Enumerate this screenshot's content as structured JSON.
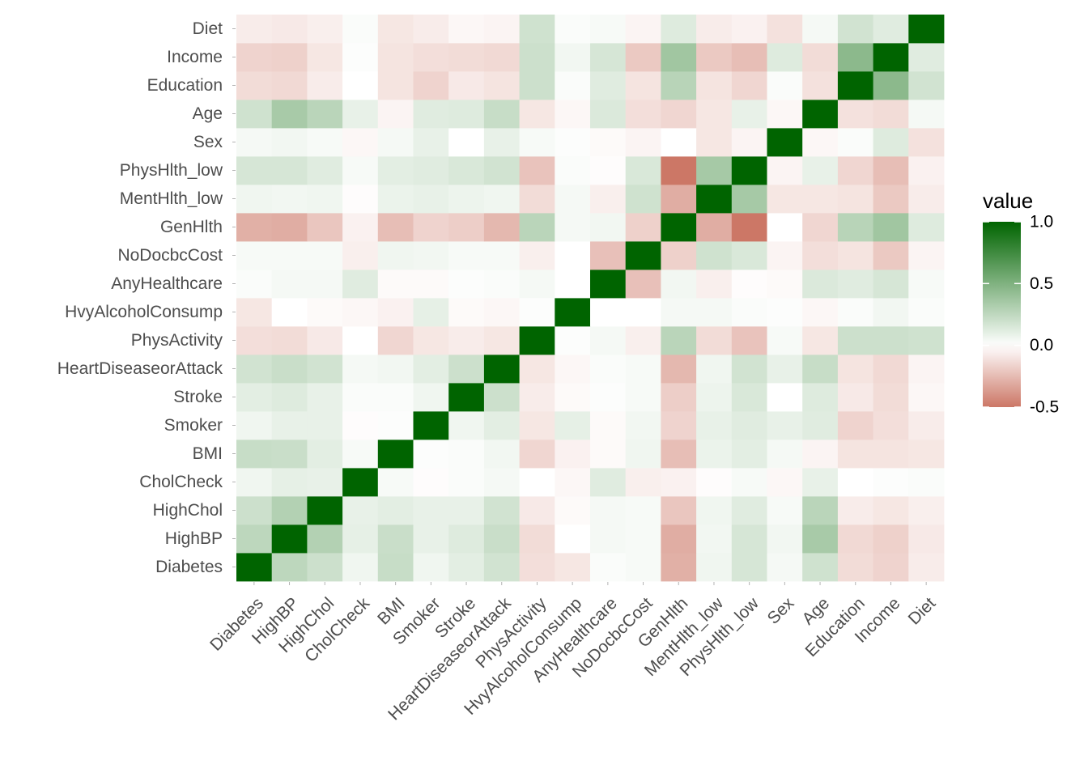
{
  "chart_data": {
    "type": "heatmap",
    "variables": [
      "Diabetes",
      "HighBP",
      "HighChol",
      "CholCheck",
      "BMI",
      "Smoker",
      "Stroke",
      "HeartDiseaseorAttack",
      "PhysActivity",
      "HvyAlcoholConsump",
      "AnyHealthcare",
      "NoDocbcCost",
      "GenHlth",
      "MentHlth_low",
      "PhysHlth_low",
      "Sex",
      "Age",
      "Education",
      "Income",
      "Diet"
    ],
    "matrix": [
      [
        1.0,
        0.26,
        0.2,
        0.06,
        0.22,
        0.06,
        0.11,
        0.18,
        -0.12,
        -0.09,
        0.02,
        0.03,
        -0.29,
        0.06,
        0.16,
        0.04,
        0.19,
        -0.13,
        -0.16,
        -0.07
      ],
      [
        0.26,
        1.0,
        0.3,
        0.1,
        0.21,
        0.09,
        0.13,
        0.21,
        -0.13,
        -0.0,
        0.04,
        0.03,
        -0.3,
        0.05,
        0.16,
        0.05,
        0.34,
        -0.14,
        -0.17,
        -0.08
      ],
      [
        0.2,
        0.3,
        1.0,
        0.09,
        0.11,
        0.09,
        0.09,
        0.18,
        -0.08,
        -0.02,
        0.04,
        0.03,
        -0.21,
        0.06,
        0.12,
        0.03,
        0.27,
        -0.07,
        -0.09,
        -0.06
      ],
      [
        0.06,
        0.1,
        0.09,
        1.0,
        0.03,
        -0.01,
        0.02,
        0.04,
        0.0,
        -0.03,
        0.12,
        -0.06,
        -0.05,
        -0.01,
        0.03,
        -0.03,
        0.09,
        0.0,
        0.01,
        0.02
      ],
      [
        0.22,
        0.21,
        0.11,
        0.03,
        1.0,
        0.01,
        0.02,
        0.05,
        -0.15,
        -0.05,
        -0.02,
        0.06,
        -0.24,
        0.08,
        0.11,
        0.04,
        -0.04,
        -0.1,
        -0.1,
        -0.09
      ],
      [
        0.06,
        0.09,
        0.09,
        -0.01,
        0.01,
        1.0,
        0.06,
        0.11,
        -0.09,
        0.1,
        -0.02,
        0.05,
        -0.16,
        0.09,
        0.12,
        0.09,
        0.12,
        -0.16,
        -0.12,
        -0.07
      ],
      [
        0.11,
        0.13,
        0.09,
        0.02,
        0.02,
        0.06,
        1.0,
        0.2,
        -0.07,
        -0.02,
        0.01,
        0.03,
        -0.18,
        0.07,
        0.15,
        -0.0,
        0.13,
        -0.08,
        -0.13,
        -0.03
      ],
      [
        0.18,
        0.21,
        0.18,
        0.04,
        0.05,
        0.11,
        0.2,
        1.0,
        -0.09,
        -0.03,
        0.02,
        0.03,
        -0.26,
        0.06,
        0.18,
        0.09,
        0.22,
        -0.1,
        -0.14,
        -0.04
      ],
      [
        -0.12,
        -0.13,
        -0.08,
        0.0,
        -0.15,
        -0.09,
        -0.07,
        -0.09,
        1.0,
        0.01,
        0.04,
        -0.06,
        0.27,
        -0.13,
        -0.22,
        0.03,
        -0.09,
        0.2,
        0.2,
        0.19
      ],
      [
        -0.09,
        -0.0,
        -0.02,
        -0.03,
        -0.05,
        0.1,
        -0.02,
        -0.03,
        0.01,
        1.0,
        -0.0,
        0.0,
        0.04,
        0.04,
        0.02,
        0.01,
        -0.03,
        0.02,
        0.05,
        0.02
      ],
      [
        0.02,
        0.04,
        0.04,
        0.12,
        -0.02,
        -0.02,
        0.01,
        0.02,
        0.04,
        -0.0,
        1.0,
        -0.23,
        0.05,
        -0.06,
        -0.01,
        -0.02,
        0.14,
        0.12,
        0.16,
        0.03
      ],
      [
        0.03,
        0.03,
        0.03,
        -0.06,
        0.06,
        0.05,
        0.03,
        0.03,
        -0.06,
        0.0,
        -0.23,
        1.0,
        -0.17,
        0.19,
        0.15,
        -0.04,
        -0.12,
        -0.1,
        -0.2,
        -0.04
      ],
      [
        -0.29,
        -0.3,
        -0.21,
        -0.05,
        -0.24,
        -0.16,
        -0.18,
        -0.26,
        0.27,
        0.04,
        0.05,
        -0.17,
        1.0,
        -0.3,
        -0.52,
        0.0,
        -0.15,
        0.28,
        0.37,
        0.13
      ],
      [
        0.06,
        0.05,
        0.06,
        -0.01,
        0.08,
        0.09,
        0.07,
        0.06,
        -0.13,
        0.04,
        -0.06,
        0.19,
        -0.3,
        1.0,
        0.35,
        -0.09,
        -0.09,
        -0.1,
        -0.2,
        -0.07
      ],
      [
        0.16,
        0.16,
        0.12,
        0.03,
        0.11,
        0.12,
        0.15,
        0.18,
        -0.22,
        0.02,
        -0.01,
        0.15,
        -0.52,
        0.35,
        1.0,
        -0.04,
        0.09,
        -0.15,
        -0.24,
        -0.05
      ],
      [
        0.04,
        0.05,
        0.03,
        -0.03,
        0.04,
        0.09,
        -0.0,
        0.09,
        0.03,
        0.01,
        -0.02,
        -0.04,
        0.0,
        -0.09,
        -0.04,
        1.0,
        -0.03,
        0.02,
        0.13,
        -0.11
      ],
      [
        0.19,
        0.34,
        0.27,
        0.09,
        -0.04,
        0.12,
        0.13,
        0.22,
        -0.09,
        -0.03,
        0.14,
        -0.12,
        -0.15,
        -0.09,
        0.09,
        -0.03,
        1.0,
        -0.11,
        -0.13,
        0.04
      ],
      [
        -0.13,
        -0.14,
        -0.07,
        0.0,
        -0.1,
        -0.16,
        -0.08,
        -0.1,
        0.2,
        0.02,
        0.12,
        -0.1,
        0.28,
        -0.1,
        -0.15,
        0.02,
        -0.11,
        1.0,
        0.45,
        0.18
      ],
      [
        -0.16,
        -0.17,
        -0.09,
        0.01,
        -0.1,
        -0.12,
        -0.13,
        -0.14,
        0.2,
        0.05,
        0.16,
        -0.2,
        0.37,
        -0.2,
        -0.24,
        0.13,
        -0.13,
        0.45,
        1.0,
        0.12
      ],
      [
        -0.07,
        -0.08,
        -0.06,
        0.02,
        -0.09,
        -0.07,
        -0.03,
        -0.04,
        0.19,
        0.02,
        0.03,
        -0.04,
        0.13,
        -0.07,
        -0.05,
        -0.11,
        0.04,
        0.18,
        0.12,
        1.0
      ]
    ],
    "zlim": [
      -0.5,
      1.0
    ],
    "colors": {
      "low": "#CC7766",
      "mid": "#FFFFFF",
      "high": "#006400"
    },
    "legend": {
      "title": "value",
      "ticks": [
        "1.0",
        "0.5",
        "0.0",
        "-0.5"
      ],
      "tick_values": [
        1.0,
        0.5,
        0.0,
        -0.5
      ],
      "position": "right"
    },
    "grid": true
  }
}
